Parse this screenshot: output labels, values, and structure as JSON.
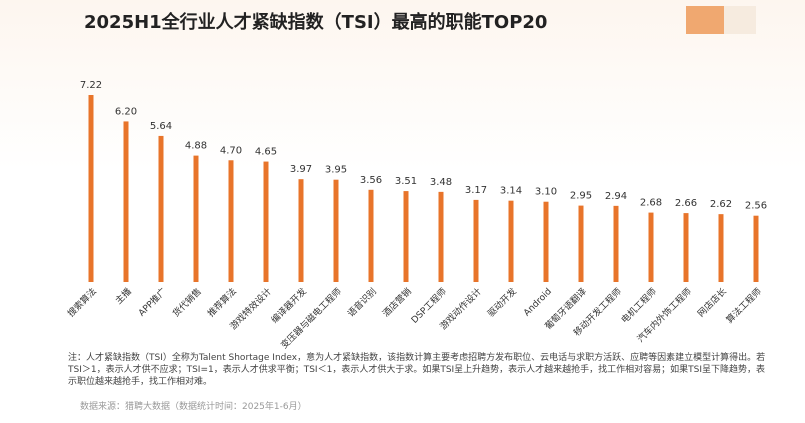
{
  "chart_data": {
    "type": "bar",
    "title": "2025H1全行业人才紧缺指数（TSI）最高的职能TOP20",
    "categories": [
      "搜索算法",
      "主播",
      "APP推广",
      "货代销售",
      "推荐算法",
      "游戏特效设计",
      "编译器开发",
      "变压器与磁电工程师",
      "语音识别",
      "酒店营销",
      "DSP工程师",
      "游戏动作设计",
      "驱动开发",
      "Android",
      "葡萄牙语翻译",
      "移动开发工程师",
      "电机工程师",
      "汽车内外饰工程师",
      "网店店长",
      "算法工程师"
    ],
    "values": [
      7.22,
      6.2,
      5.64,
      4.88,
      4.7,
      4.65,
      3.97,
      3.95,
      3.56,
      3.51,
      3.48,
      3.17,
      3.14,
      3.1,
      2.95,
      2.94,
      2.68,
      2.66,
      2.62,
      2.56
    ],
    "value_labels": [
      "7.22",
      "6.20",
      "5.64",
      "4.88",
      "4.70",
      "4.65",
      "3.97",
      "3.95",
      "3.56",
      "3.51",
      "3.48",
      "3.17",
      "3.14",
      "3.10",
      "2.95",
      "2.94",
      "2.68",
      "2.66",
      "2.62",
      "2.56"
    ],
    "color": "#e8742a",
    "note": "注：人才紧缺指数（TSI）全称为Talent Shortage Index，意为人才紧缺指数，该指数计算主要考虑招聘方发布职位、云电话与求职方活跃、应聘等因素建立模型计算得出。若TSI＞1，表示人才供不应求；TSI=1，表示人才供求平衡；TSI＜1，表示人才供大于求。如果TSI呈上升趋势，表示人才越来越抢手，找工作相对容易；如果TSI呈下降趋势，表示职位越来越抢手，找工作相对难。",
    "source": "数据来源：猎聘大数据（数据统计时间：2025年1-6月）"
  }
}
